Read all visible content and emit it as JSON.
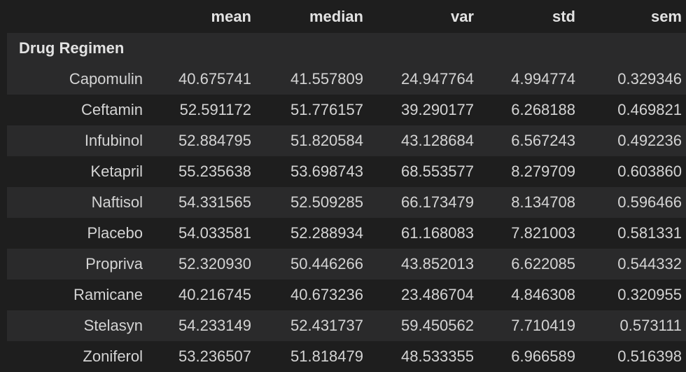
{
  "table": {
    "columns": [
      "mean",
      "median",
      "var",
      "std",
      "sem"
    ],
    "index_name": "Drug Regimen",
    "rows": [
      {
        "label": "Capomulin",
        "values": [
          "40.675741",
          "41.557809",
          "24.947764",
          "4.994774",
          "0.329346"
        ]
      },
      {
        "label": "Ceftamin",
        "values": [
          "52.591172",
          "51.776157",
          "39.290177",
          "6.268188",
          "0.469821"
        ]
      },
      {
        "label": "Infubinol",
        "values": [
          "52.884795",
          "51.820584",
          "43.128684",
          "6.567243",
          "0.492236"
        ]
      },
      {
        "label": "Ketapril",
        "values": [
          "55.235638",
          "53.698743",
          "68.553577",
          "8.279709",
          "0.603860"
        ]
      },
      {
        "label": "Naftisol",
        "values": [
          "54.331565",
          "52.509285",
          "66.173479",
          "8.134708",
          "0.596466"
        ]
      },
      {
        "label": "Placebo",
        "values": [
          "54.033581",
          "52.288934",
          "61.168083",
          "7.821003",
          "0.581331"
        ]
      },
      {
        "label": "Propriva",
        "values": [
          "52.320930",
          "50.446266",
          "43.852013",
          "6.622085",
          "0.544332"
        ]
      },
      {
        "label": "Ramicane",
        "values": [
          "40.216745",
          "40.673236",
          "23.486704",
          "4.846308",
          "0.320955"
        ]
      },
      {
        "label": "Stelasyn",
        "values": [
          "54.233149",
          "52.431737",
          "59.450562",
          "7.710419",
          "0.573111"
        ]
      },
      {
        "label": "Zoniferol",
        "values": [
          "53.236507",
          "51.818479",
          "48.533355",
          "6.966589",
          "0.516398"
        ]
      }
    ]
  },
  "colors": {
    "background": "#1e1e1e",
    "row_stripe": "#2a2a2b",
    "text": "#d4d4d4"
  }
}
